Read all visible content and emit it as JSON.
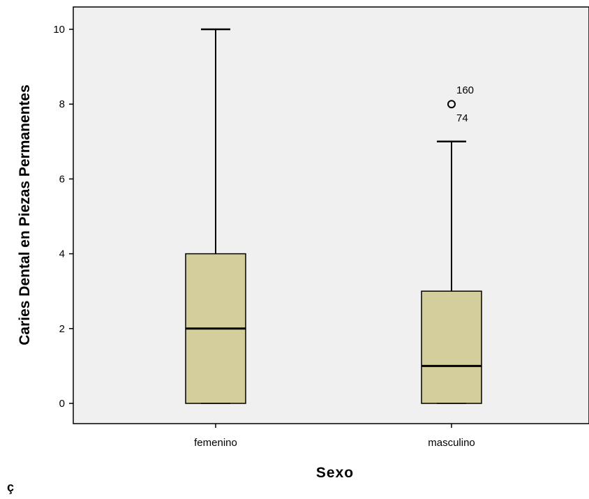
{
  "chart_data": {
    "type": "boxplot",
    "xlabel": "Sexo",
    "ylabel": "Caries Dental en Piezas Permanentes",
    "ylim": [
      -0.55,
      10.6
    ],
    "yticks": [
      0,
      2,
      4,
      6,
      8,
      10
    ],
    "categories": [
      "femenino",
      "masculino"
    ],
    "boxes": [
      {
        "category": "femenino",
        "min": 0,
        "q1": 0,
        "median": 2,
        "q3": 4,
        "max": 10,
        "outliers": []
      },
      {
        "category": "masculino",
        "min": 0,
        "q1": 0,
        "median": 1,
        "q3": 3,
        "max": 7,
        "outliers": [
          {
            "value": 8,
            "labels": [
              "160",
              "74"
            ]
          }
        ]
      }
    ],
    "colors": {
      "plot_bg": "#f0f0f0",
      "box_fill": "#d3ce9c",
      "line": "#000000"
    },
    "grid": false
  },
  "footnote": "ç"
}
